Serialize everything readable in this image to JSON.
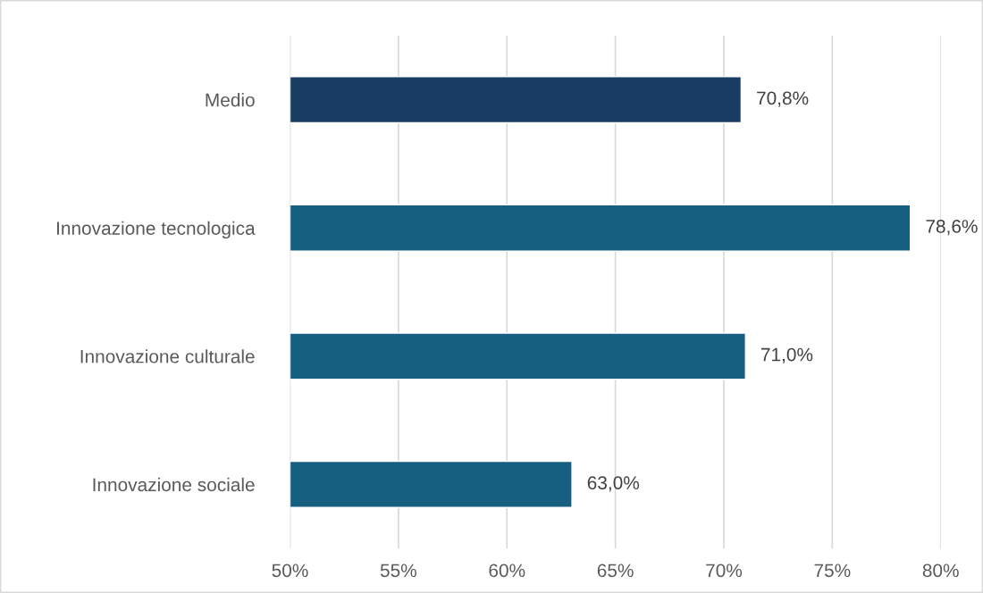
{
  "chart_data": {
    "type": "bar",
    "orientation": "horizontal",
    "categories": [
      "Medio",
      "Innovazione tecnologica",
      "Innovazione culturale",
      "Innovazione sociale"
    ],
    "values": [
      70.8,
      78.6,
      71.0,
      63.0
    ],
    "colors": [
      "#183c62",
      "#175f80",
      "#175f80",
      "#175f80"
    ],
    "value_labels": [
      "70,8%",
      "78,6%",
      "71,0%",
      "63,0%"
    ],
    "xlim": [
      50,
      80
    ],
    "xticks": [
      {
        "value": 50,
        "label": "50%"
      },
      {
        "value": 55,
        "label": "55%"
      },
      {
        "value": 60,
        "label": "60%"
      },
      {
        "value": 65,
        "label": "65%"
      },
      {
        "value": 70,
        "label": "70%"
      },
      {
        "value": 75,
        "label": "75%"
      },
      {
        "value": 80,
        "label": "80%"
      }
    ],
    "grid": "x"
  }
}
